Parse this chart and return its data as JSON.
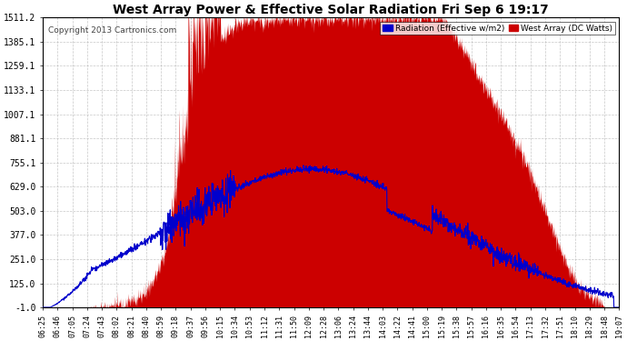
{
  "title": "West Array Power & Effective Solar Radiation Fri Sep 6 19:17",
  "copyright": "Copyright 2013 Cartronics.com",
  "legend_radiation": "Radiation (Effective w/m2)",
  "legend_west": "West Array (DC Watts)",
  "yticks": [
    -1.0,
    125.0,
    251.0,
    377.0,
    503.0,
    629.0,
    755.1,
    881.1,
    1007.1,
    1133.1,
    1259.1,
    1385.1,
    1511.2
  ],
  "ymin": -1.0,
  "ymax": 1511.2,
  "bg_color": "#ffffff",
  "plot_bg_color": "#ffffff",
  "grid_color": "#b0b0b0",
  "fill_color": "#cc0000",
  "line_color": "#0000cc",
  "title_color": "#000000",
  "xtick_labels": [
    "06:25",
    "06:46",
    "07:05",
    "07:24",
    "07:43",
    "08:02",
    "08:21",
    "08:40",
    "08:59",
    "09:18",
    "09:37",
    "09:56",
    "10:15",
    "10:34",
    "10:53",
    "11:12",
    "11:31",
    "11:50",
    "12:09",
    "12:28",
    "13:06",
    "13:24",
    "13:44",
    "14:03",
    "14:22",
    "14:41",
    "15:00",
    "15:19",
    "15:38",
    "15:57",
    "16:16",
    "16:35",
    "16:54",
    "17:13",
    "17:32",
    "17:51",
    "18:10",
    "18:29",
    "18:48",
    "19:07"
  ]
}
